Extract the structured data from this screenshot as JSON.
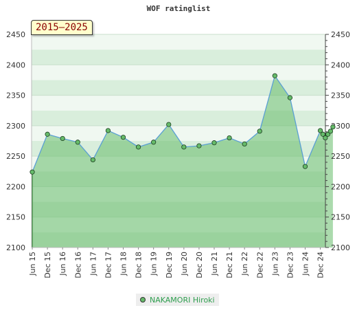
{
  "chart_data": {
    "type": "area",
    "title": "WOF ratinglist",
    "range_label": "2015–2025",
    "xlabel": "",
    "ylabel": "",
    "ylim": [
      2100,
      2450
    ],
    "yticks": [
      2100,
      2150,
      2200,
      2250,
      2300,
      2350,
      2400,
      2450
    ],
    "xticks": [
      "Jun 15",
      "Dec 15",
      "Jun 16",
      "Dec 16",
      "Jun 17",
      "Dec 17",
      "Jun 18",
      "Dec 18",
      "Jun 19",
      "Dec 19",
      "Jun 20",
      "Dec 20",
      "Jun 21",
      "Dec 21",
      "Jun 22",
      "Dec 22",
      "Jun 23",
      "Dec 23",
      "Jun 24",
      "Dec 24"
    ],
    "legend_position": "bottom",
    "series": [
      {
        "name": "NAKAMORI Hiroki",
        "color": "#66bb6a",
        "line_color": "#5a9fd4",
        "x": [
          0,
          1,
          2,
          3,
          4,
          5,
          6,
          7,
          8,
          9,
          10,
          11,
          12,
          13,
          14,
          15,
          16,
          17,
          18,
          19,
          19.17,
          19.33,
          19.5,
          19.67,
          19.83
        ],
        "values": [
          2224,
          2286,
          2279,
          2273,
          2244,
          2292,
          2281,
          2265,
          2273,
          2302,
          2265,
          2267,
          2272,
          2280,
          2270,
          2291,
          2382,
          2346,
          2233,
          2292,
          2286,
          2280,
          2286,
          2291,
          2298
        ]
      }
    ]
  }
}
